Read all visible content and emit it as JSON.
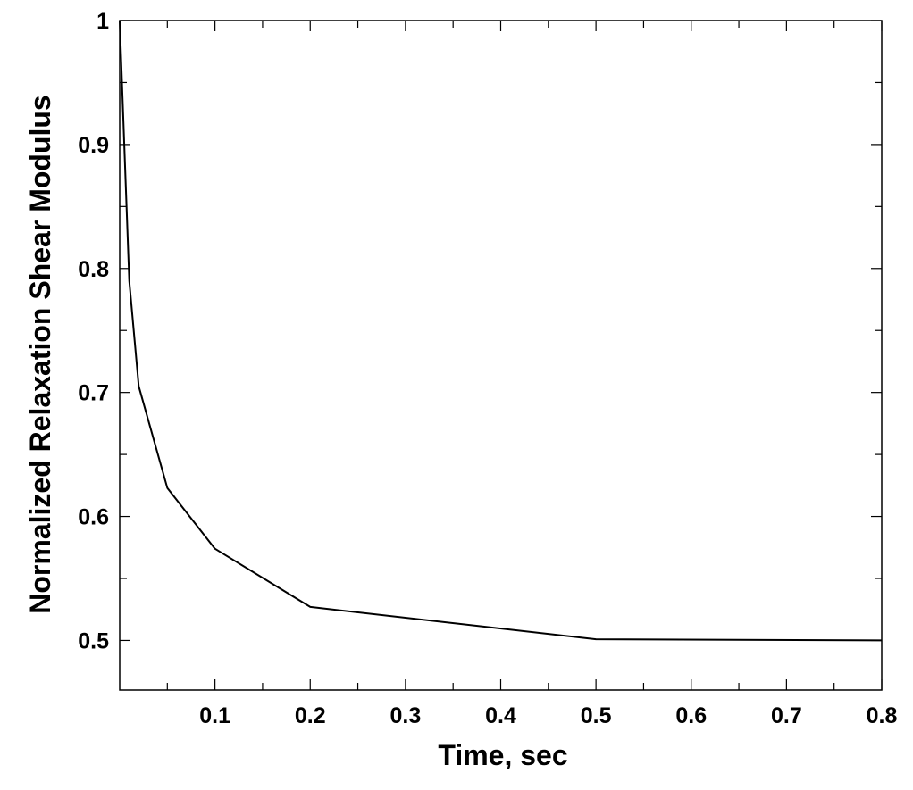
{
  "chart_data": {
    "type": "line",
    "title": "",
    "xlabel": "Time, sec",
    "ylabel": "Normalized Relaxation Shear Modulus",
    "xlim": [
      0,
      0.8
    ],
    "ylim": [
      0.46,
      1.0
    ],
    "x_ticks": [
      0.1,
      0.2,
      0.3,
      0.4,
      0.5,
      0.6,
      0.7,
      0.8
    ],
    "x_tick_labels": [
      "0.1",
      "0.2",
      "0.3",
      "0.4",
      "0.5",
      "0.6",
      "0.7",
      "0.8"
    ],
    "y_ticks": [
      0.5,
      0.6,
      0.7,
      0.8,
      0.9,
      1.0
    ],
    "y_tick_labels": [
      "0.5",
      "0.6",
      "0.7",
      "0.8",
      "0.9",
      "1"
    ],
    "grid": false,
    "series": [
      {
        "color": "#000000",
        "x": [
          0,
          0.01,
          0.02,
          0.05,
          0.1,
          0.2,
          0.5,
          0.8
        ],
        "y": [
          1.0,
          0.79,
          0.705,
          0.623,
          0.574,
          0.527,
          0.501,
          0.5
        ]
      }
    ]
  }
}
